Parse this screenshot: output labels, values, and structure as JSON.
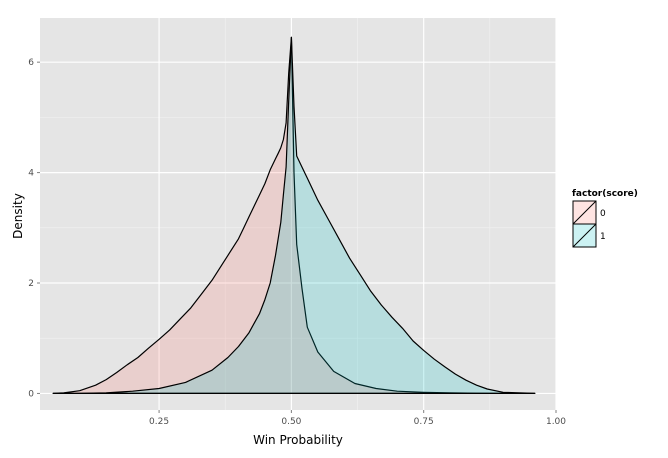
{
  "chart_data": {
    "type": "area",
    "xlabel": "Win Probability",
    "ylabel": "Density",
    "xlim": [
      0.025,
      1.0
    ],
    "ylim": [
      -0.3,
      6.8
    ],
    "x_ticks": [
      0.25,
      0.5,
      0.75,
      1.0
    ],
    "x_tick_labels": [
      "0.25",
      "0.50",
      "0.75",
      "1.00"
    ],
    "y_ticks": [
      0,
      2,
      4,
      6
    ],
    "y_tick_labels": [
      "0",
      "2",
      "4",
      "6"
    ],
    "grid": true,
    "legend": {
      "title": "factor(score)",
      "position": "right",
      "entries": [
        "0",
        "1"
      ]
    },
    "series": [
      {
        "label": "0",
        "fill": "#f8766d",
        "x": [
          0.05,
          0.07,
          0.1,
          0.13,
          0.15,
          0.17,
          0.19,
          0.21,
          0.23,
          0.25,
          0.27,
          0.29,
          0.31,
          0.33,
          0.35,
          0.37,
          0.38,
          0.4,
          0.41,
          0.42,
          0.43,
          0.44,
          0.45,
          0.46,
          0.47,
          0.475,
          0.48,
          0.485,
          0.49,
          0.495,
          0.5,
          0.505,
          0.51,
          0.52,
          0.53,
          0.55,
          0.58,
          0.62,
          0.66,
          0.7,
          0.75,
          0.8,
          0.85,
          0.9,
          0.96
        ],
        "y": [
          0.0,
          0.01,
          0.05,
          0.15,
          0.25,
          0.38,
          0.52,
          0.65,
          0.82,
          0.98,
          1.15,
          1.35,
          1.55,
          1.8,
          2.05,
          2.35,
          2.5,
          2.8,
          3.0,
          3.2,
          3.4,
          3.6,
          3.8,
          4.05,
          4.25,
          4.35,
          4.45,
          4.6,
          4.9,
          5.8,
          6.45,
          4.0,
          2.7,
          1.9,
          1.2,
          0.75,
          0.4,
          0.18,
          0.09,
          0.04,
          0.02,
          0.01,
          0.005,
          0.0,
          0.0
        ]
      },
      {
        "label": "1",
        "fill": "#00bfc4",
        "x": [
          0.05,
          0.1,
          0.15,
          0.2,
          0.25,
          0.3,
          0.35,
          0.38,
          0.4,
          0.42,
          0.44,
          0.45,
          0.46,
          0.47,
          0.48,
          0.485,
          0.49,
          0.495,
          0.5,
          0.505,
          0.51,
          0.52,
          0.53,
          0.55,
          0.57,
          0.59,
          0.61,
          0.63,
          0.65,
          0.67,
          0.69,
          0.71,
          0.73,
          0.75,
          0.77,
          0.79,
          0.81,
          0.83,
          0.85,
          0.87,
          0.9,
          0.96
        ],
        "y": [
          0.0,
          0.0,
          0.01,
          0.04,
          0.09,
          0.2,
          0.42,
          0.65,
          0.85,
          1.1,
          1.45,
          1.7,
          2.0,
          2.5,
          3.1,
          3.6,
          4.1,
          5.3,
          6.45,
          5.2,
          4.3,
          4.1,
          3.9,
          3.5,
          3.15,
          2.8,
          2.45,
          2.15,
          1.85,
          1.6,
          1.38,
          1.18,
          0.95,
          0.78,
          0.62,
          0.48,
          0.35,
          0.24,
          0.15,
          0.08,
          0.02,
          0.0
        ]
      }
    ]
  }
}
